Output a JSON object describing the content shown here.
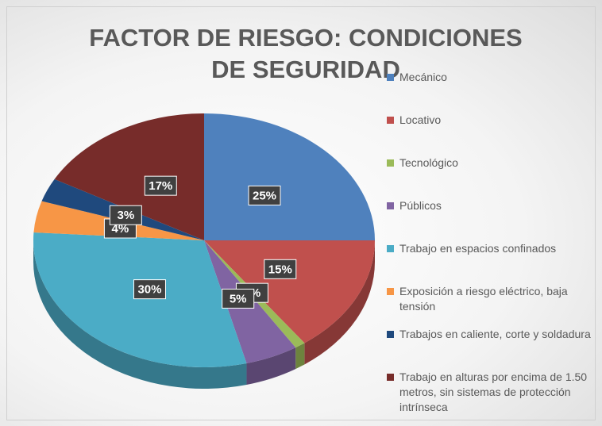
{
  "chart_data": {
    "type": "pie3d",
    "title": "FACTOR DE RIESGO: CONDICIONES DE SEGURIDAD",
    "categories": [
      "Mecánico",
      "Locativo",
      "Tecnológico",
      "Públicos",
      "Trabajo en espacios confinados",
      "Exposición a riesgo eléctrico, baja tensión",
      "Trabajos en caliente, corte y soldadura",
      "Trabajo en alturas por encima de 1.50 metros, sin sistemas de protección intrínseca"
    ],
    "values": [
      25,
      15,
      1,
      5,
      30,
      4,
      3,
      17
    ],
    "value_labels": [
      "25%",
      "15%",
      "1%",
      "5%",
      "30%",
      "4%",
      "3%",
      "17%"
    ],
    "colors": [
      "#4f81bd",
      "#c0504d",
      "#9bbb59",
      "#8064a2",
      "#4bacc6",
      "#f79646",
      "#1f497d",
      "#772c2a"
    ],
    "legend": "right"
  }
}
